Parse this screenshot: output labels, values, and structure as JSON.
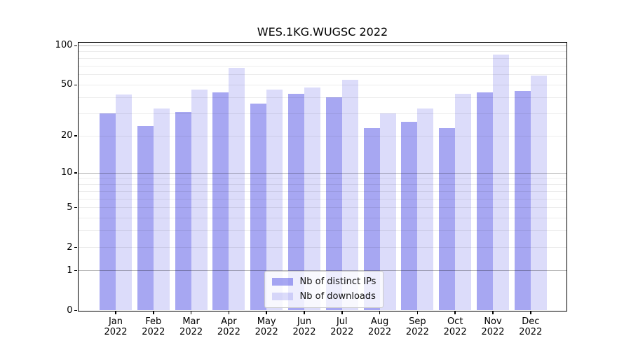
{
  "figure": {
    "background": "#ffffff"
  },
  "chart_data": {
    "type": "bar",
    "title": "WES.1KG.WUGSC 2022",
    "categories": [
      "Jan",
      "Feb",
      "Mar",
      "Apr",
      "May",
      "Jun",
      "Jul",
      "Aug",
      "Sep",
      "Oct",
      "Nov",
      "Dec"
    ],
    "year_label": "2022",
    "series": [
      {
        "name": "Nb of distinct IPs",
        "color": "rgba(80,80,230,0.5)",
        "values": [
          30,
          24,
          31,
          44,
          36,
          43,
          40,
          23,
          26,
          23,
          44,
          45
        ]
      },
      {
        "name": "Nb of downloads",
        "color": "rgba(80,80,230,0.2)",
        "values": [
          42,
          33,
          46,
          68,
          46,
          48,
          55,
          30,
          33,
          43,
          86,
          59
        ]
      }
    ],
    "yscale": "log1p",
    "yticks": [
      0,
      1,
      2,
      5,
      10,
      20,
      50,
      100
    ],
    "major_grid_values": [
      1,
      10,
      100
    ],
    "minor_grid_values": [
      2,
      3,
      4,
      5,
      6,
      7,
      8,
      9,
      20,
      30,
      40,
      50,
      60,
      70,
      80,
      90
    ],
    "ylim": [
      0,
      106.3
    ],
    "grid": true,
    "legend_position": "lower center",
    "axis_color": "#000000",
    "major_grid_color": "rgba(0,0,0,0.28)",
    "minor_grid_color": "rgba(0,0,0,0.075)"
  }
}
